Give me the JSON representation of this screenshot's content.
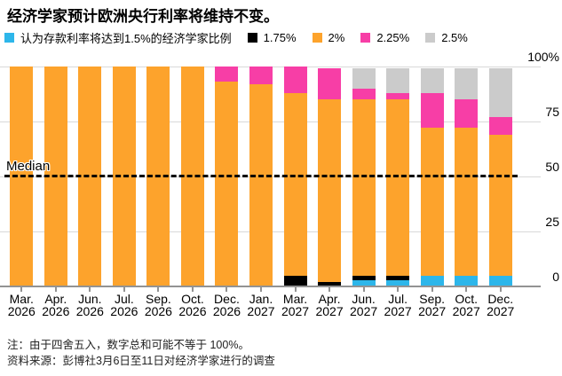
{
  "title": "经济学家预计欧洲央行利率将维持不变。",
  "legend": [
    {
      "label": "认为存款利率将达到1.5%的经济学家比例",
      "color": "#2db6ea",
      "icon": "blue-swatch"
    },
    {
      "label": "1.75%",
      "color": "#000000",
      "icon": "black-swatch"
    },
    {
      "label": "2%",
      "color": "#fda32c",
      "icon": "orange-swatch"
    },
    {
      "label": "2.25%",
      "color": "#f73ea6",
      "icon": "pink-swatch"
    },
    {
      "label": "2.5%",
      "color": "#cbcbcb",
      "icon": "gray-swatch"
    }
  ],
  "chart_data": {
    "type": "bar",
    "stacked": true,
    "grid": true,
    "legend_position": "top",
    "ylim": [
      0,
      100
    ],
    "yticks": [
      0,
      25,
      50,
      75,
      100
    ],
    "ytick_labels": [
      "0",
      "25",
      "50",
      "75",
      "100%"
    ],
    "categories": [
      "Mar. 2026",
      "Apr. 2026",
      "Jun. 2026",
      "Jul. 2026",
      "Sep. 2026",
      "Oct. 2026",
      "Dec. 2026",
      "Jan. 2027",
      "Mar. 2027",
      "Apr. 2027",
      "Jun. 2027",
      "Jul. 2027",
      "Sep. 2027",
      "Oct. 2027",
      "Dec. 2027"
    ],
    "series": [
      {
        "name": "认为存款利率将达到1.5%的经济学家比例",
        "color": "#2db6ea",
        "values": [
          0,
          0,
          0,
          0,
          0,
          0,
          0,
          0,
          0,
          0,
          3,
          3,
          5,
          5,
          5
        ]
      },
      {
        "name": "1.75%",
        "color": "#000000",
        "values": [
          0,
          0,
          0,
          0,
          0,
          0,
          0,
          0,
          5,
          2,
          2,
          2,
          0,
          0,
          0
        ]
      },
      {
        "name": "2%",
        "color": "#fda32c",
        "values": [
          100,
          100,
          100,
          100,
          100,
          100,
          93,
          92,
          83,
          83,
          80,
          80,
          67,
          67,
          64
        ]
      },
      {
        "name": "2.25%",
        "color": "#f73ea6",
        "values": [
          0,
          0,
          0,
          0,
          0,
          0,
          7,
          8,
          12,
          14,
          5,
          3,
          16,
          13,
          8
        ]
      },
      {
        "name": "2.5%",
        "color": "#cbcbcb",
        "values": [
          0,
          0,
          0,
          0,
          0,
          0,
          0,
          0,
          0,
          0,
          9,
          11,
          11,
          14,
          22
        ]
      }
    ],
    "median": {
      "label": "Median",
      "value": 50
    }
  },
  "notes": {
    "note": "注：由于四舍五入，数字总和可能不等于 100%。",
    "source": "资料来源：彭博社3月6日至11日对经济学家进行的调查"
  },
  "colors": {
    "gridline": "#d9d9d9",
    "axis": "#939393",
    "text": "#000000"
  }
}
